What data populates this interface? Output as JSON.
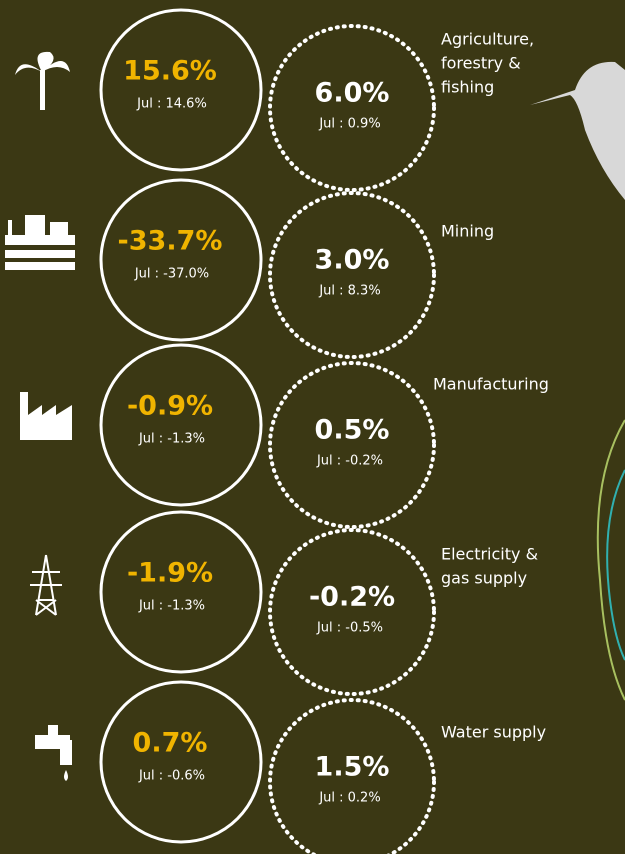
{
  "rows": [
    {
      "label": [
        "Agriculture,",
        "forestry &",
        "fishing"
      ],
      "current": "15.6%",
      "current_prev": "Jul : 14.6%",
      "other": "6.0%",
      "other_prev": "Jul : 0.9%"
    },
    {
      "label": [
        "Mining"
      ],
      "current": "-33.7%",
      "current_prev": "Jul : -37.0%",
      "other": "3.0%",
      "other_prev": "Jul : 8.3%"
    },
    {
      "label": [
        "Manufacturing"
      ],
      "current": "-0.9%",
      "current_prev": "Jul : -1.3%",
      "other": "0.5%",
      "other_prev": "Jul : -0.2%"
    },
    {
      "label": [
        "Electricity &",
        "gas supply"
      ],
      "current": "-1.9%",
      "current_prev": "Jul : -1.3%",
      "other": "-0.2%",
      "other_prev": "Jul : -0.5%"
    },
    {
      "label": [
        "Water supply"
      ],
      "current": "0.7%",
      "current_prev": "Jul : -0.6%",
      "other": "1.5%",
      "other_prev": "Jul : 0.2%"
    }
  ]
}
